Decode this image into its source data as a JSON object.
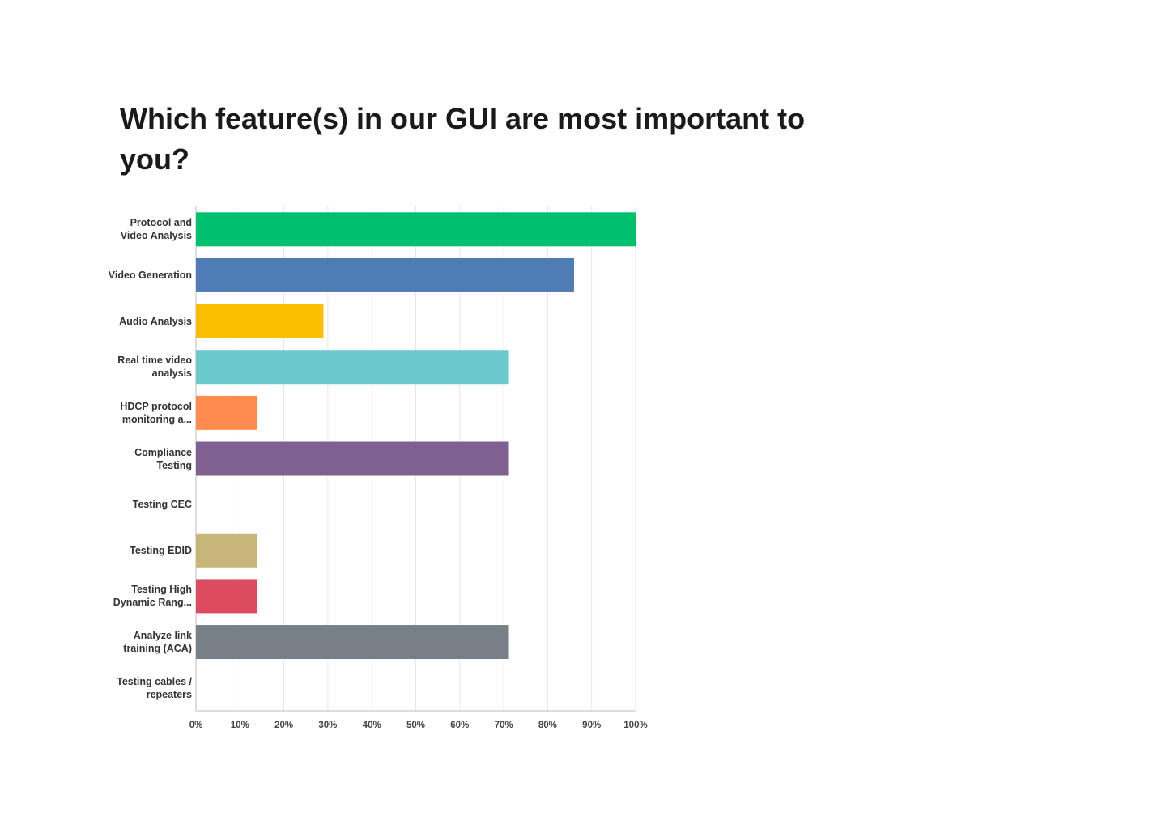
{
  "chart_data": {
    "type": "bar",
    "orientation": "horizontal",
    "title": "Which feature(s) in our GUI are most important to you?",
    "categories": [
      "Protocol and Video Analysis",
      "Video Generation",
      "Audio Analysis",
      "Real time video analysis",
      "HDCP protocol monitoring a...",
      "Compliance Testing",
      "Testing CEC",
      "Testing EDID",
      "Testing High Dynamic Rang...",
      "Analyze link training (ACA)",
      "Testing cables / repeaters"
    ],
    "values": [
      100,
      86,
      29,
      71,
      14,
      71,
      0,
      14,
      14,
      71,
      0
    ],
    "colors": [
      "#00bf6f",
      "#507cb6",
      "#f9be00",
      "#6bc8cd",
      "#ff8b4f",
      "#7f6091",
      "#95d1b5",
      "#c8b579",
      "#dd4c5e",
      "#768086",
      "#f2a09e"
    ],
    "xlim": [
      0,
      100
    ],
    "xticks": [
      {
        "value": 0,
        "label": "0%"
      },
      {
        "value": 10,
        "label": "10%"
      },
      {
        "value": 20,
        "label": "20%"
      },
      {
        "value": 30,
        "label": "30%"
      },
      {
        "value": 40,
        "label": "40%"
      },
      {
        "value": 50,
        "label": "50%"
      },
      {
        "value": 60,
        "label": "60%"
      },
      {
        "value": 70,
        "label": "70%"
      },
      {
        "value": 80,
        "label": "80%"
      },
      {
        "value": 90,
        "label": "90%"
      },
      {
        "value": 100,
        "label": "100%"
      }
    ],
    "grid": true
  }
}
